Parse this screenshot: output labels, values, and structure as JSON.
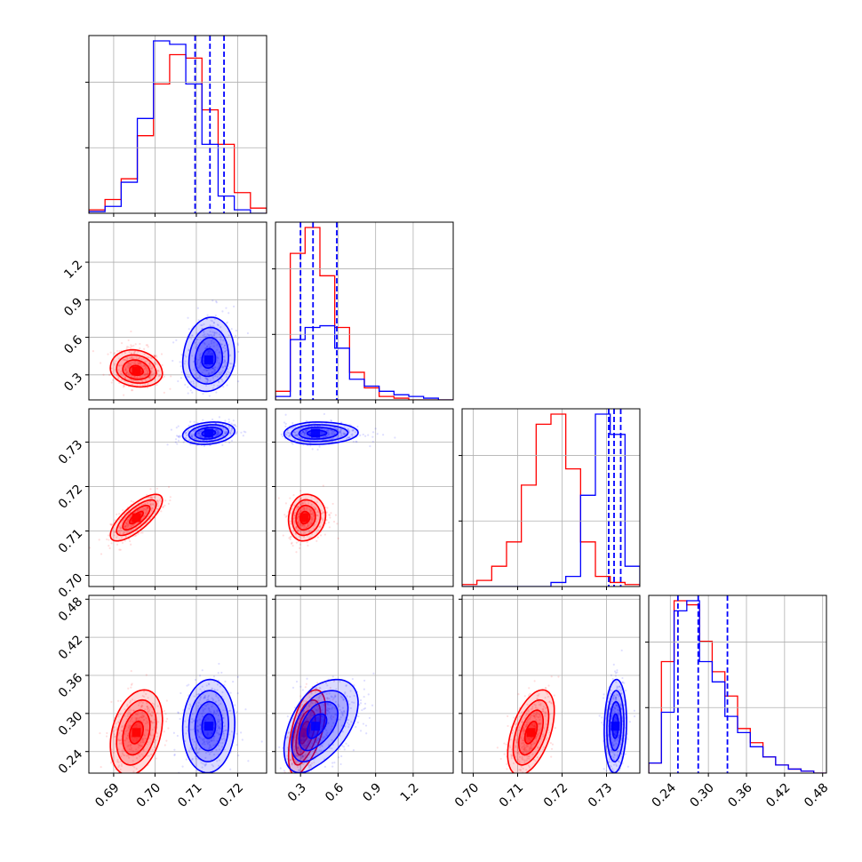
{
  "chart_data": {
    "type": "corner",
    "colors": {
      "run_a": "#ff0000",
      "run_b": "#0000ff"
    },
    "grid": true,
    "parameters": [
      {
        "range": [
          0.684,
          0.727
        ],
        "ticks": [
          0.69,
          0.7,
          0.71,
          0.72
        ],
        "tick_labels": [
          "0.69",
          "0.70",
          "0.71",
          "0.72"
        ]
      },
      {
        "range": [
          0.1,
          1.52
        ],
        "ticks": [
          0.3,
          0.6,
          0.9,
          1.2
        ],
        "tick_labels": [
          "0.3",
          "0.6",
          "0.9",
          "1.2"
        ]
      },
      {
        "range": [
          0.6975,
          0.7375
        ],
        "ticks": [
          0.7,
          0.71,
          0.72,
          0.73
        ],
        "tick_labels": [
          "0.70",
          "0.71",
          "0.72",
          "0.73"
        ]
      },
      {
        "range": [
          0.206,
          0.486
        ],
        "ticks": [
          0.24,
          0.3,
          0.36,
          0.42,
          0.48
        ],
        "tick_labels": [
          "0.24",
          "0.30",
          "0.36",
          "0.42",
          "0.48"
        ]
      }
    ],
    "series": [
      {
        "color": "#ff0000",
        "means": [
          0.6955,
          0.33,
          0.713,
          0.27
        ],
        "sds": [
          0.003,
          0.06,
          0.0025,
          0.032
        ],
        "corr": {
          "1-0": -0.15,
          "2-0": 0.75,
          "3-0": 0.3,
          "2-1": 0.1,
          "3-1": 0.55,
          "3-2": 0.5
        },
        "hist_values": [
          [
            0.02,
            0.08,
            0.2,
            0.45,
            0.75,
            0.92,
            0.9,
            0.6,
            0.4,
            0.12,
            0.03
          ],
          [
            0.05,
            0.85,
            1.0,
            0.72,
            0.42,
            0.16,
            0.07,
            0.02,
            0.01,
            0.0,
            0.0,
            0.0
          ],
          [
            0.01,
            0.03,
            0.1,
            0.22,
            0.5,
            0.8,
            0.85,
            0.58,
            0.22,
            0.05,
            0.02,
            0.01
          ],
          [
            0.05,
            0.55,
            0.85,
            0.83,
            0.65,
            0.5,
            0.38,
            0.22,
            0.15,
            0.08,
            0.04,
            0.02,
            0.01,
            0.0
          ]
        ]
      },
      {
        "color": "#0000ff",
        "means": [
          0.713,
          0.42,
          0.732,
          0.28
        ],
        "sds": [
          0.003,
          0.12,
          0.0012,
          0.035
        ],
        "corr": {
          "1-0": 0.1,
          "2-0": 0.2,
          "3-0": 0.05,
          "2-1": 0.05,
          "3-1": 0.5,
          "3-2": 0.1
        },
        "hist_values": [
          [
            0.01,
            0.04,
            0.18,
            0.55,
            1.0,
            0.98,
            0.75,
            0.4,
            0.1,
            0.02,
            0.0
          ],
          [
            0.02,
            0.35,
            0.42,
            0.43,
            0.3,
            0.12,
            0.08,
            0.05,
            0.03,
            0.02,
            0.01,
            0.0
          ],
          [
            0.0,
            0.0,
            0.0,
            0.0,
            0.0,
            0.0,
            0.02,
            0.05,
            0.45,
            0.85,
            0.75,
            0.1
          ],
          [
            0.05,
            0.3,
            0.8,
            0.85,
            0.55,
            0.45,
            0.28,
            0.2,
            0.13,
            0.08,
            0.04,
            0.02,
            0.01,
            0.0
          ]
        ]
      }
    ],
    "quantile_lines": [
      [
        0.7097,
        0.7133,
        0.7167
      ],
      [
        0.3,
        0.4,
        0.59
      ],
      [
        0.7305,
        0.7317,
        0.7332
      ],
      [
        0.252,
        0.284,
        0.33
      ]
    ]
  }
}
